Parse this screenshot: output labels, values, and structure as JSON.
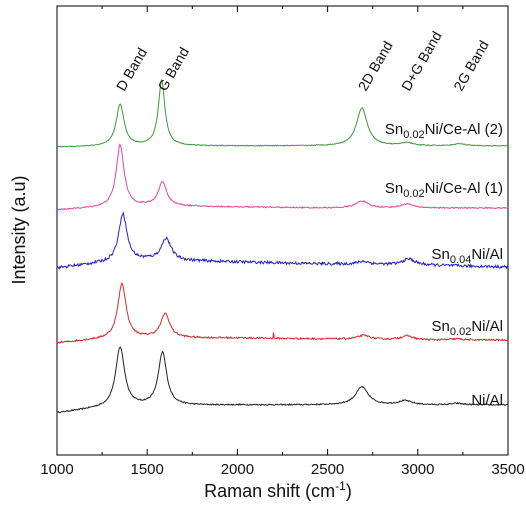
{
  "chart_data": {
    "type": "line",
    "xlabel": "Raman shift (cm",
    "xlabel_sup": "-1",
    "xlabel_close": ")",
    "ylabel": "Intensity (a.u)",
    "xlim": [
      1000,
      3500
    ],
    "x_ticks": [
      "1000",
      "1500",
      "2000",
      "2500",
      "3000",
      "3500"
    ],
    "y_ticks_shown": false,
    "grid": false,
    "band_annotations": [
      {
        "text": "D Band",
        "x": 1350
      },
      {
        "text": "G Band",
        "x": 1580
      },
      {
        "text": "2D Band",
        "x": 2690
      },
      {
        "text": "D+G Band",
        "x": 2930
      },
      {
        "text": "2G Band",
        "x": 3220
      }
    ],
    "series": [
      {
        "label": {
          "base": "Ni/Al",
          "sub": "",
          "suffix": ""
        },
        "color": "#222222",
        "noise": 0.6,
        "baseline": [
          [
            1000,
            0
          ],
          [
            1200,
            4
          ],
          [
            1500,
            7
          ],
          [
            2000,
            8
          ],
          [
            2500,
            8
          ],
          [
            3000,
            8
          ],
          [
            3500,
            8
          ]
        ],
        "peaks": [
          {
            "center": 1350,
            "height": 60,
            "width": 30
          },
          {
            "center": 1585,
            "height": 53,
            "width": 28
          },
          {
            "center": 2690,
            "height": 18,
            "width": 42
          },
          {
            "center": 2930,
            "height": 4,
            "width": 45
          },
          {
            "center": 3220,
            "height": 1.5,
            "width": 40
          }
        ]
      },
      {
        "label": {
          "base": "Sn",
          "sub": "0.02",
          "suffix": "Ni/Al"
        },
        "color": "#d42a2a",
        "noise": 0.8,
        "baseline": [
          [
            1000,
            0
          ],
          [
            1200,
            3
          ],
          [
            1500,
            5
          ],
          [
            2000,
            5
          ],
          [
            2500,
            4
          ],
          [
            3000,
            3
          ],
          [
            3500,
            3
          ]
        ],
        "peaks": [
          {
            "center": 1360,
            "height": 55,
            "width": 28
          },
          {
            "center": 1600,
            "height": 24,
            "width": 30
          },
          {
            "center": 2700,
            "height": 4,
            "width": 40
          },
          {
            "center": 2940,
            "height": 4,
            "width": 40
          },
          {
            "center": 3220,
            "height": 1,
            "width": 40
          }
        ],
        "spikes": [
          {
            "x": 2200,
            "height": 6
          }
        ]
      },
      {
        "label": {
          "base": "Sn",
          "sub": "0.04",
          "suffix": "Ni/Al"
        },
        "color": "#2222cc",
        "noise": 1.4,
        "baseline": [
          [
            1000,
            0
          ],
          [
            1200,
            4
          ],
          [
            1500,
            8
          ],
          [
            2000,
            6
          ],
          [
            2500,
            4
          ],
          [
            3000,
            3
          ],
          [
            3500,
            1
          ]
        ],
        "peaks": [
          {
            "center": 1365,
            "height": 48,
            "width": 28
          },
          {
            "center": 1605,
            "height": 22,
            "width": 32
          },
          {
            "center": 2700,
            "height": 3,
            "width": 40
          },
          {
            "center": 2950,
            "height": 6,
            "width": 40
          }
        ]
      },
      {
        "label": {
          "base": "Sn",
          "sub": "0.02",
          "suffix": "Ni/Ce-Al (1)"
        },
        "color": "#e0489a",
        "noise": 0.6,
        "baseline": [
          [
            1000,
            0
          ],
          [
            1200,
            2
          ],
          [
            1500,
            4
          ],
          [
            2000,
            3
          ],
          [
            2500,
            2
          ],
          [
            3000,
            2
          ],
          [
            3500,
            2
          ]
        ],
        "peaks": [
          {
            "center": 1350,
            "height": 62,
            "width": 26
          },
          {
            "center": 1585,
            "height": 24,
            "width": 28
          },
          {
            "center": 2690,
            "height": 7,
            "width": 40
          },
          {
            "center": 2940,
            "height": 4,
            "width": 40
          }
        ]
      },
      {
        "label": {
          "base": "Sn",
          "sub": "0.02",
          "suffix": "Ni/Ce-Al (2)"
        },
        "color": "#3a9a3a",
        "noise": 0.4,
        "baseline": [
          [
            1000,
            0
          ],
          [
            1500,
            1
          ],
          [
            2000,
            1
          ],
          [
            2500,
            1
          ],
          [
            3000,
            1
          ],
          [
            3500,
            1
          ]
        ],
        "peaks": [
          {
            "center": 1350,
            "height": 42,
            "width": 26
          },
          {
            "center": 1580,
            "height": 65,
            "width": 22
          },
          {
            "center": 2690,
            "height": 38,
            "width": 36
          },
          {
            "center": 2940,
            "height": 3,
            "width": 40
          },
          {
            "center": 3230,
            "height": 2,
            "width": 40
          }
        ]
      }
    ]
  }
}
